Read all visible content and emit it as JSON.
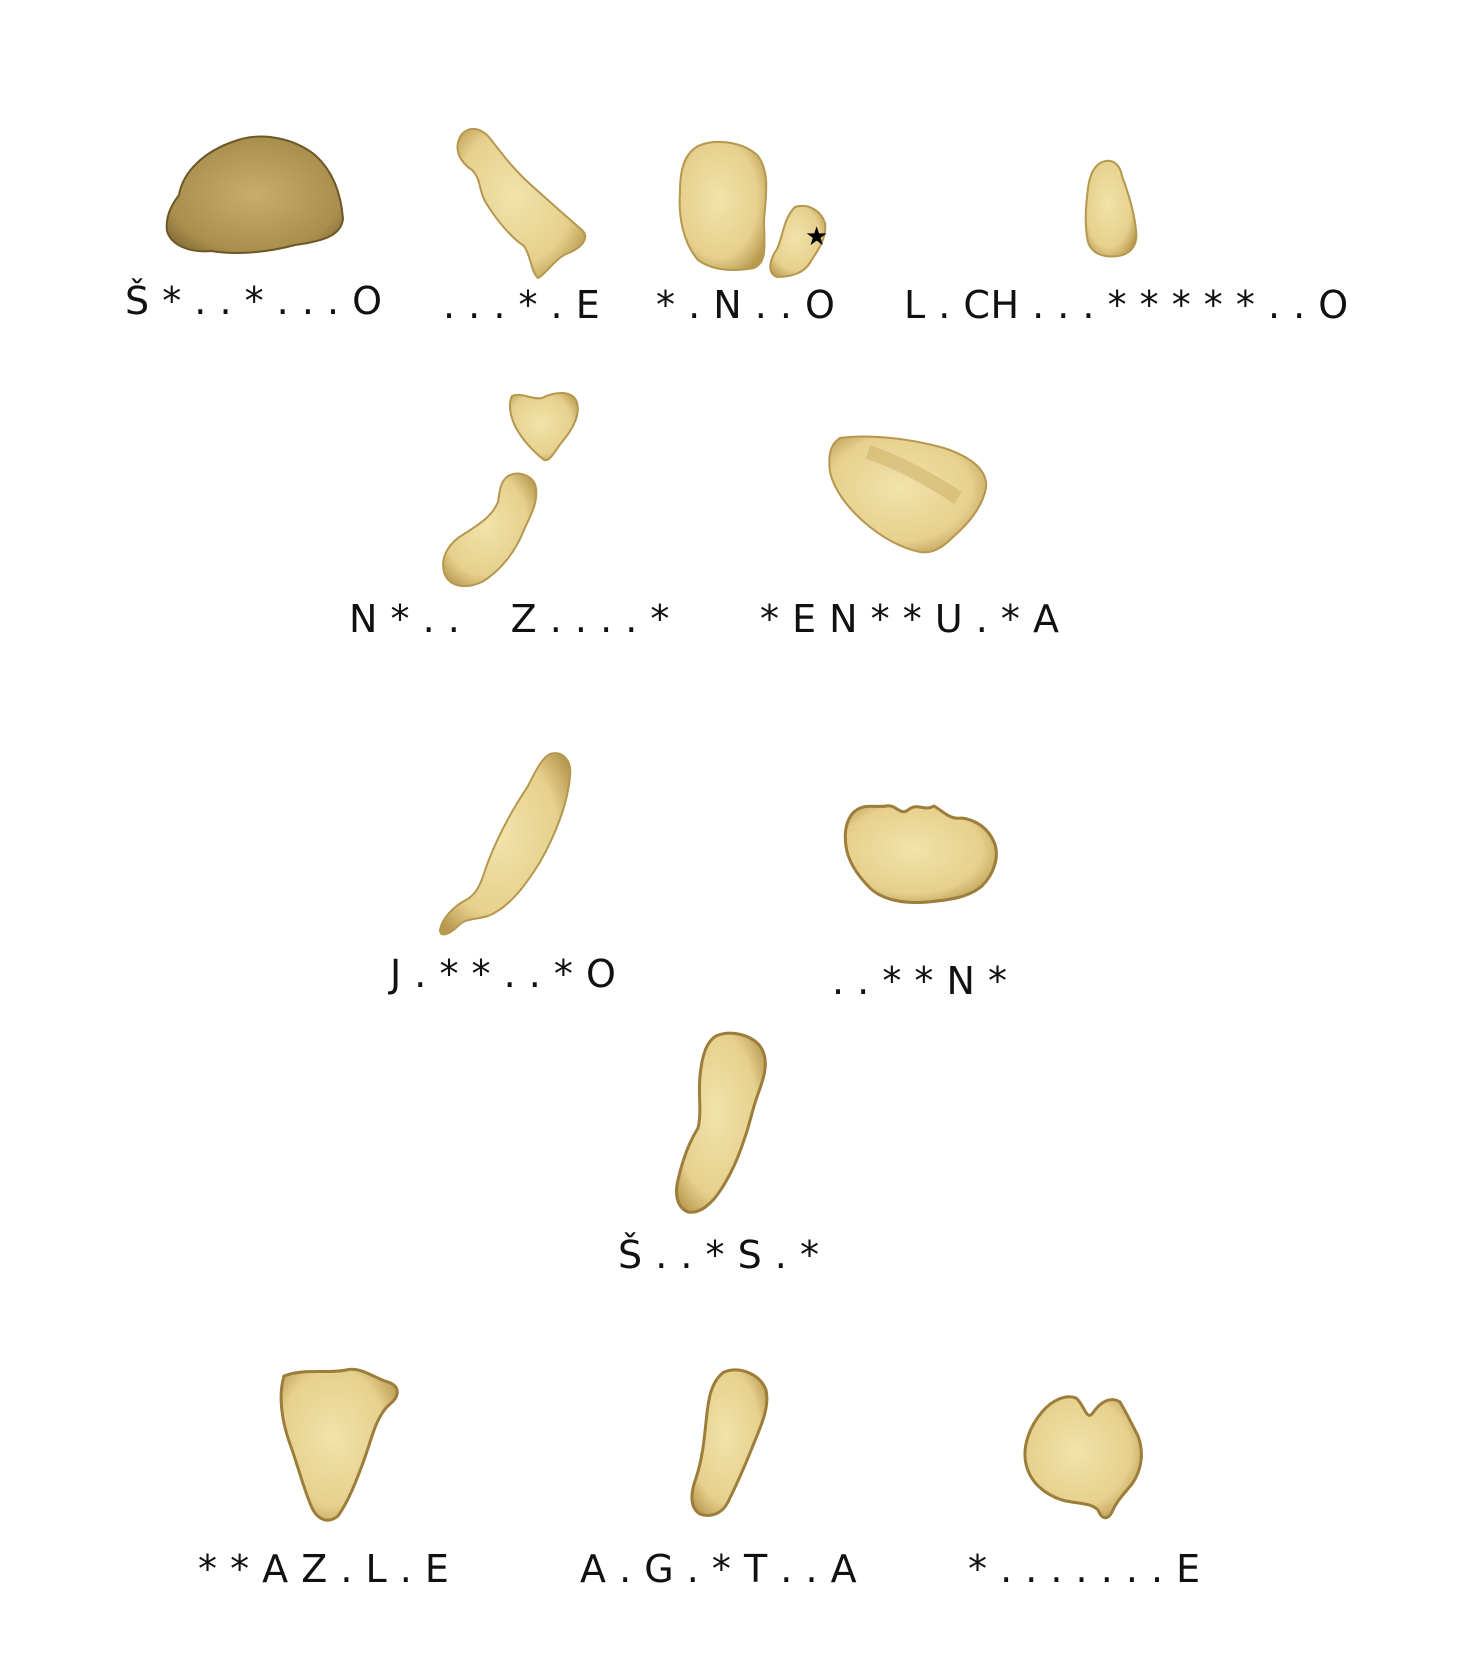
{
  "colors": {
    "chip_fill": "#e9d79a",
    "chip_shade": "#c9b06a",
    "chip_edge": "#9c7d3a",
    "dark_chip_fill": "#bfa463",
    "dark_chip_shade": "#8d7434",
    "label_text": "#111111"
  },
  "star_marker": "★",
  "labels": {
    "chip_1": "Š * . . * . . . O",
    "chip_2": ". . . * . E",
    "chip_3": "* . N . . O",
    "chip_4": "L . CH . . . * * * * * . . O",
    "chip_5": "N * . .    Z . . . . *",
    "chip_6": "* E N * * U . * A",
    "chip_7": "J . * * . . * O",
    "chip_8": ". . * * N *",
    "chip_9": "Š . . * S . *",
    "chip_10": "* * A Z . L . E",
    "chip_11": "A . G . * T . . A",
    "chip_12": "* . . . . . . . E"
  }
}
